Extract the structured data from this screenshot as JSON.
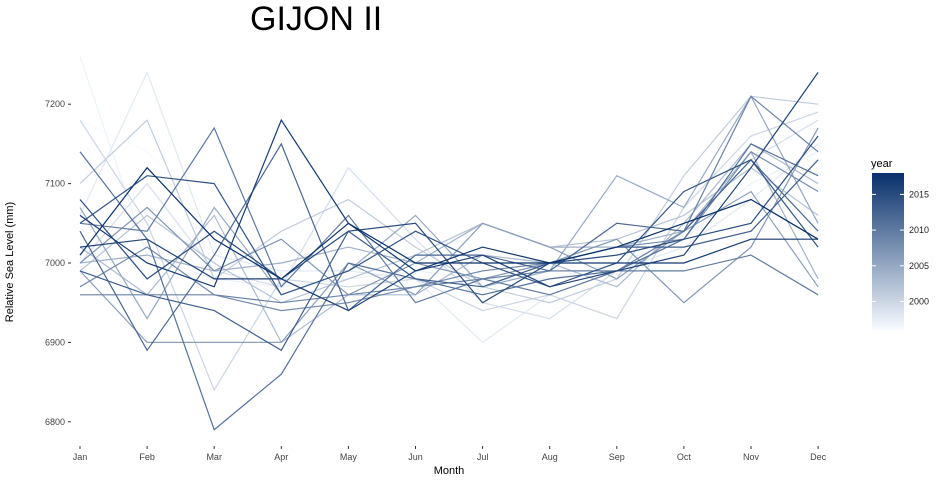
{
  "chart_data": {
    "type": "line",
    "title": "GIJON II",
    "xlabel": "Month",
    "ylabel": "Relative Sea Level (mm)",
    "categories": [
      "Jan",
      "Feb",
      "Mar",
      "Apr",
      "May",
      "Jun",
      "Jul",
      "Aug",
      "Sep",
      "Oct",
      "Nov",
      "Dec"
    ],
    "y_ticks": [
      6800,
      6900,
      7000,
      7100,
      7200
    ],
    "ylim": [
      6760,
      7270
    ],
    "grid": false,
    "legend": {
      "title": "year",
      "placement": "right",
      "type": "colorbar",
      "ticks": [
        2000,
        2005,
        2010,
        2015
      ],
      "range": [
        1996,
        2018
      ],
      "color_low": "#f7fbff",
      "color_high": "#08306b"
    },
    "series": [
      {
        "year": 1996,
        "values": [
          7180,
          7140,
          7060,
          7000,
          6990,
          7000,
          6980,
          6970,
          6990,
          7010,
          7060,
          7100
        ]
      },
      {
        "year": 1997,
        "values": [
          7260,
          7010,
          6980,
          6970,
          6980,
          6990,
          6980,
          6980,
          7000,
          7030,
          7100,
          7140
        ]
      },
      {
        "year": 1998,
        "values": [
          7060,
          7240,
          7010,
          6990,
          6990,
          6980,
          6900,
          6960,
          6990,
          7020,
          7080,
          7150
        ]
      },
      {
        "year": 1999,
        "values": [
          7000,
          7100,
          6990,
          6970,
          7120,
          7030,
          6950,
          6930,
          6990,
          7040,
          7130,
          7180
        ]
      },
      {
        "year": 2000,
        "values": [
          7180,
          7050,
          6840,
          6980,
          6970,
          6980,
          6940,
          6960,
          6930,
          7070,
          7160,
          7190
        ]
      },
      {
        "year": 2001,
        "values": [
          7100,
          7180,
          6980,
          7040,
          7080,
          7020,
          6970,
          6950,
          6980,
          7110,
          7210,
          7200
        ]
      },
      {
        "year": 2002,
        "values": [
          6990,
          7060,
          7000,
          6950,
          6980,
          7010,
          7050,
          7020,
          7030,
          7060,
          7120,
          7060
        ]
      },
      {
        "year": 2003,
        "values": [
          7020,
          6960,
          7060,
          6900,
          6960,
          6960,
          7010,
          7000,
          6970,
          7050,
          7150,
          7100
        ]
      },
      {
        "year": 2004,
        "values": [
          7000,
          7010,
          6990,
          7000,
          7020,
          7000,
          7050,
          7020,
          7020,
          7040,
          7140,
          6980
        ]
      },
      {
        "year": 2005,
        "values": [
          7070,
          6930,
          7070,
          6960,
          6990,
          7060,
          6970,
          6990,
          7110,
          7070,
          7210,
          7050
        ]
      },
      {
        "year": 2006,
        "values": [
          6990,
          6900,
          6900,
          6900,
          7000,
          6960,
          7050,
          7020,
          6980,
          7040,
          7090,
          6970
        ]
      },
      {
        "year": 2007,
        "values": [
          7000,
          7070,
          6990,
          7030,
          6960,
          7000,
          6980,
          7000,
          7030,
          6950,
          7020,
          7170
        ]
      },
      {
        "year": 2008,
        "values": [
          6970,
          7020,
          6960,
          6940,
          6950,
          6970,
          6990,
          7000,
          7020,
          7030,
          7140,
          7090
        ]
      },
      {
        "year": 2009,
        "values": [
          6960,
          6960,
          6960,
          6950,
          6960,
          6970,
          6980,
          6990,
          6990,
          7040,
          7210,
          7140
        ]
      },
      {
        "year": 2010,
        "values": [
          7050,
          7040,
          7170,
          6970,
          7060,
          6950,
          6980,
          6960,
          6990,
          6990,
          7010,
          6960
        ]
      },
      {
        "year": 2011,
        "values": [
          7140,
          7030,
          6790,
          6860,
          7000,
          6980,
          6960,
          6980,
          6990,
          7030,
          7150,
          7110
        ]
      },
      {
        "year": 2012,
        "values": [
          7040,
          6890,
          7010,
          7150,
          6940,
          7010,
          7010,
          6990,
          7050,
          7040,
          7130,
          7040
        ]
      },
      {
        "year": 2013,
        "values": [
          6990,
          6960,
          6940,
          6890,
          7040,
          6980,
          6970,
          7000,
          7020,
          7020,
          7040,
          7130
        ]
      },
      {
        "year": 2014,
        "values": [
          7050,
          7110,
          7100,
          6960,
          6990,
          7040,
          7000,
          6970,
          7000,
          7090,
          7130,
          7020
        ]
      },
      {
        "year": 2015,
        "values": [
          7080,
          6980,
          7040,
          6980,
          7040,
          7050,
          6950,
          7000,
          7010,
          7030,
          7050,
          7160
        ]
      },
      {
        "year": 2016,
        "values": [
          7020,
          7030,
          6980,
          6980,
          6940,
          6990,
          7010,
          6970,
          6990,
          7010,
          7120,
          7240
        ]
      },
      {
        "year": 2017,
        "values": [
          7060,
          7000,
          6970,
          7180,
          7050,
          6990,
          7020,
          7000,
          7000,
          7000,
          7030,
          7030
        ]
      },
      {
        "year": 2018,
        "values": [
          7010,
          7120,
          7030,
          6980,
          7050,
          7000,
          7000,
          7000,
          7020,
          7050,
          7080,
          7030
        ]
      }
    ]
  }
}
